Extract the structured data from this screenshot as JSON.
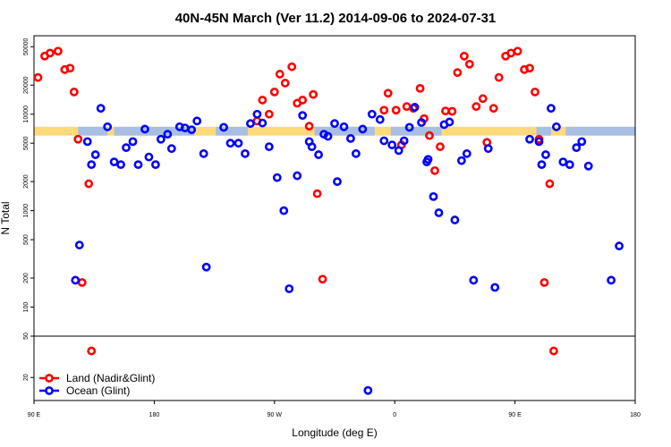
{
  "chart_data": {
    "type": "scatter",
    "title": "40N-45N March (Ver 11.2)   2014-09-06 to 2024-07-31",
    "xlabel": "Longitude (deg E)",
    "ylabel": "N Total",
    "x_ticks": [
      {
        "value": 90,
        "label": "90 E"
      },
      {
        "value": 180,
        "label": "180"
      },
      {
        "value": 270,
        "label": "90 W"
      },
      {
        "value": 360,
        "label": "0"
      },
      {
        "value": 450,
        "label": "90 E"
      },
      {
        "value": 540,
        "label": "180"
      }
    ],
    "xlim": [
      90,
      540
    ],
    "upper_panel": {
      "scale": "log",
      "ylim": [
        50,
        65000
      ],
      "y_ticks": [
        {
          "value": 100,
          "label": "100"
        },
        {
          "value": 200,
          "label": "200"
        },
        {
          "value": 500,
          "label": "500"
        },
        {
          "value": 1000,
          "label": "1000"
        },
        {
          "value": 2000,
          "label": "2000"
        },
        {
          "value": 5000,
          "label": "5000"
        },
        {
          "value": 10000,
          "label": "10000"
        },
        {
          "value": 20000,
          "label": "20000"
        },
        {
          "value": 50000,
          "label": "50000"
        }
      ]
    },
    "lower_panel": {
      "scale": "log",
      "ylim": [
        12,
        50
      ],
      "y_ticks": [
        {
          "value": 20,
          "label": "20"
        },
        {
          "value": 50,
          "label": "50"
        }
      ]
    },
    "band": {
      "low": 6000,
      "high": 7400,
      "colors": [
        "#ffd97a",
        "#a8bfe3"
      ]
    },
    "series": [
      {
        "name": "Land (Nadir&Glint)",
        "color": "#ff0000",
        "points": [
          [
            93,
            24000
          ],
          [
            98,
            40000
          ],
          [
            102,
            43000
          ],
          [
            108,
            45000
          ],
          [
            113,
            29000
          ],
          [
            117,
            30000
          ],
          [
            120,
            17000
          ],
          [
            123,
            5500
          ],
          [
            126,
            180
          ],
          [
            131,
            1900
          ],
          [
            133,
            36
          ],
          [
            257,
            8500
          ],
          [
            261,
            14000
          ],
          [
            266,
            10000
          ],
          [
            270,
            17000
          ],
          [
            274,
            26000
          ],
          [
            278,
            21000
          ],
          [
            283,
            31000
          ],
          [
            287,
            13000
          ],
          [
            291,
            14000
          ],
          [
            296,
            7500
          ],
          [
            299,
            16000
          ],
          [
            302,
            1500
          ],
          [
            306,
            195
          ],
          [
            352,
            11000
          ],
          [
            355,
            16500
          ],
          [
            361,
            11000
          ],
          [
            365,
            4800
          ],
          [
            369,
            12000
          ],
          [
            374,
            11500
          ],
          [
            379,
            18500
          ],
          [
            382,
            9000
          ],
          [
            386,
            6000
          ],
          [
            390,
            2600
          ],
          [
            394,
            4600
          ],
          [
            398,
            10800
          ],
          [
            403,
            10700
          ],
          [
            407,
            27000
          ],
          [
            412,
            40000
          ],
          [
            416,
            33000
          ],
          [
            421,
            12000
          ],
          [
            426,
            14500
          ],
          [
            429,
            5100
          ],
          [
            434,
            11500
          ],
          [
            438,
            24000
          ],
          [
            443,
            40000
          ],
          [
            447,
            43000
          ],
          [
            452,
            45000
          ],
          [
            457,
            29000
          ],
          [
            461,
            30000
          ],
          [
            465,
            17000
          ],
          [
            468,
            5500
          ],
          [
            472,
            180
          ],
          [
            476,
            1900
          ],
          [
            479,
            36
          ]
        ]
      },
      {
        "name": "Ocean (Glint)",
        "color": "#0000ff",
        "points": [
          [
            121,
            190
          ],
          [
            124,
            440
          ],
          [
            130,
            5200
          ],
          [
            133,
            3000
          ],
          [
            136,
            3800
          ],
          [
            140,
            11500
          ],
          [
            145,
            7400
          ],
          [
            150,
            3200
          ],
          [
            155,
            3000
          ],
          [
            159,
            4500
          ],
          [
            164,
            5200
          ],
          [
            168,
            3000
          ],
          [
            173,
            7000
          ],
          [
            176,
            3600
          ],
          [
            181,
            3000
          ],
          [
            185,
            5500
          ],
          [
            190,
            6200
          ],
          [
            193,
            4400
          ],
          [
            199,
            7400
          ],
          [
            203,
            7200
          ],
          [
            208,
            6900
          ],
          [
            212,
            8500
          ],
          [
            217,
            3900
          ],
          [
            219,
            260
          ],
          [
            232,
            7300
          ],
          [
            237,
            5000
          ],
          [
            243,
            5000
          ],
          [
            248,
            3900
          ],
          [
            252,
            8000
          ],
          [
            257,
            10000
          ],
          [
            261,
            8100
          ],
          [
            266,
            4600
          ],
          [
            272,
            2200
          ],
          [
            277,
            1000
          ],
          [
            281,
            155
          ],
          [
            287,
            2300
          ],
          [
            291,
            9700
          ],
          [
            296,
            5200
          ],
          [
            298,
            4600
          ],
          [
            303,
            3800
          ],
          [
            307,
            6200
          ],
          [
            310,
            5900
          ],
          [
            315,
            8000
          ],
          [
            317,
            2000
          ],
          [
            322,
            7400
          ],
          [
            327,
            5600
          ],
          [
            331,
            3900
          ],
          [
            336,
            7000
          ],
          [
            340,
            15
          ],
          [
            343,
            10000
          ],
          [
            349,
            8800
          ],
          [
            352,
            5300
          ],
          [
            358,
            4800
          ],
          [
            363,
            4200
          ],
          [
            367,
            5300
          ],
          [
            371,
            7300
          ],
          [
            375,
            11800
          ],
          [
            380,
            8200
          ],
          [
            384,
            3200
          ],
          [
            385,
            3400
          ],
          [
            389,
            1400
          ],
          [
            393,
            950
          ],
          [
            397,
            7800
          ],
          [
            401,
            8300
          ],
          [
            405,
            800
          ],
          [
            410,
            3300
          ],
          [
            414,
            3900
          ],
          [
            419,
            190
          ],
          [
            430,
            4400
          ],
          [
            435,
            160
          ],
          [
            461,
            5500
          ],
          [
            468,
            5200
          ],
          [
            470,
            3000
          ],
          [
            473,
            3800
          ],
          [
            477,
            11500
          ],
          [
            481,
            7400
          ],
          [
            486,
            3200
          ],
          [
            491,
            3000
          ],
          [
            496,
            4500
          ],
          [
            500,
            5200
          ],
          [
            505,
            2900
          ],
          [
            522,
            190
          ],
          [
            528,
            430
          ]
        ]
      }
    ],
    "legend": {
      "placement": "bottom-left"
    }
  }
}
